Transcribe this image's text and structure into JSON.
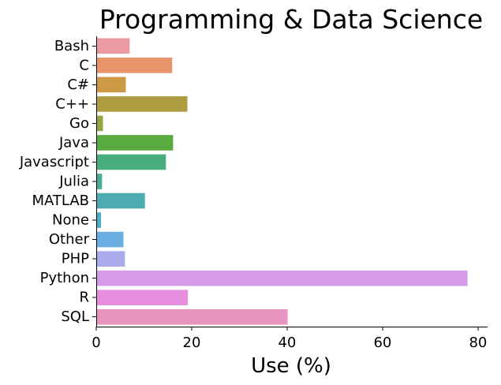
{
  "chart_data": {
    "type": "bar",
    "orientation": "horizontal",
    "title": "Programming & Data Science",
    "xlabel": "Use (%)",
    "ylabel": "",
    "xlim": [
      0,
      82
    ],
    "xticks": [
      0,
      20,
      40,
      60,
      80
    ],
    "grid": false,
    "categories": [
      "Bash",
      "C",
      "C#",
      "C++",
      "Go",
      "Java",
      "Javascript",
      "Julia",
      "MATLAB",
      "None",
      "Other",
      "PHP",
      "Python",
      "R",
      "SQL"
    ],
    "values": [
      7.0,
      15.9,
      6.2,
      19.1,
      1.4,
      16.1,
      14.6,
      1.2,
      10.2,
      1.0,
      5.7,
      6.0,
      77.8,
      19.2,
      40.1
    ],
    "colors": [
      "#ea9aa0",
      "#e8946a",
      "#cc9a47",
      "#ad9d40",
      "#97a43f",
      "#5aab3f",
      "#48ae7e",
      "#49ab99",
      "#4babb1",
      "#4cadc9",
      "#6baee4",
      "#aaa9ec",
      "#d59be9",
      "#e78fde",
      "#e894c0"
    ]
  }
}
